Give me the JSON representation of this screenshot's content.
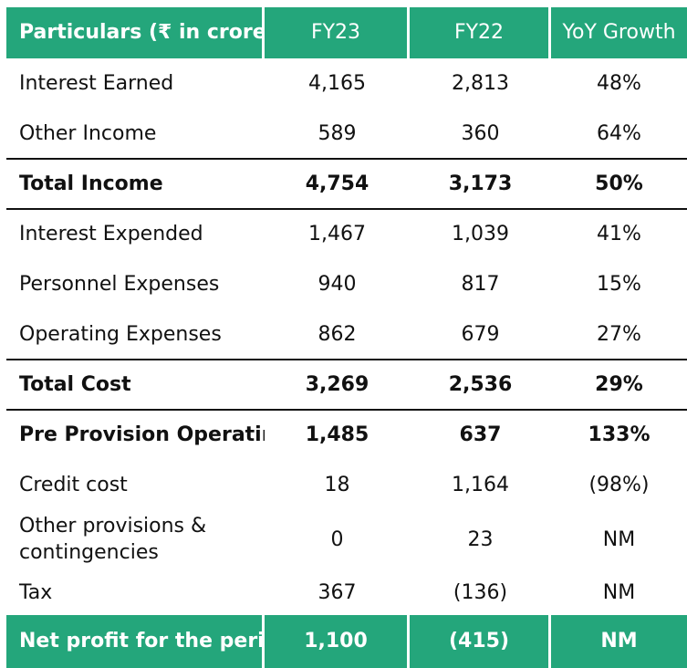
{
  "header": {
    "particulars": "Particulars (₹ in crore)",
    "fy23": "FY23",
    "fy22": "FY22",
    "yoy": "YoY Growth"
  },
  "rows": [
    {
      "label": "Interest Earned",
      "fy23": "4,165",
      "fy22": "2,813",
      "yoy": "48%"
    },
    {
      "label": "Other Income",
      "fy23": "589",
      "fy22": "360",
      "yoy": "64%"
    },
    {
      "label": "Total Income",
      "fy23": "4,754",
      "fy22": "3,173",
      "yoy": "50%"
    },
    {
      "label": "Interest Expended",
      "fy23": "1,467",
      "fy22": "1,039",
      "yoy": "41%"
    },
    {
      "label": "Personnel Expenses",
      "fy23": "940",
      "fy22": "817",
      "yoy": "15%"
    },
    {
      "label": "Operating Expenses",
      "fy23": "862",
      "fy22": "679",
      "yoy": "27%"
    },
    {
      "label": "Total Cost",
      "fy23": "3,269",
      "fy22": "2,536",
      "yoy": "29%"
    },
    {
      "label": "Pre Provision Operating",
      "fy23": "1,485",
      "fy22": "637",
      "yoy": "133%"
    },
    {
      "label": "Credit cost",
      "fy23": "18",
      "fy22": "1,164",
      "yoy": "(98%)"
    },
    {
      "label": "Other provisions & contingencies",
      "fy23": "0",
      "fy22": "23",
      "yoy": "NM"
    },
    {
      "label": "Tax",
      "fy23": "367",
      "fy22": "(136)",
      "yoy": "NM"
    }
  ],
  "footer": {
    "label": "Net profit for the perio",
    "fy23": "1,100",
    "fy22": "(415)",
    "yoy": "NM"
  }
}
